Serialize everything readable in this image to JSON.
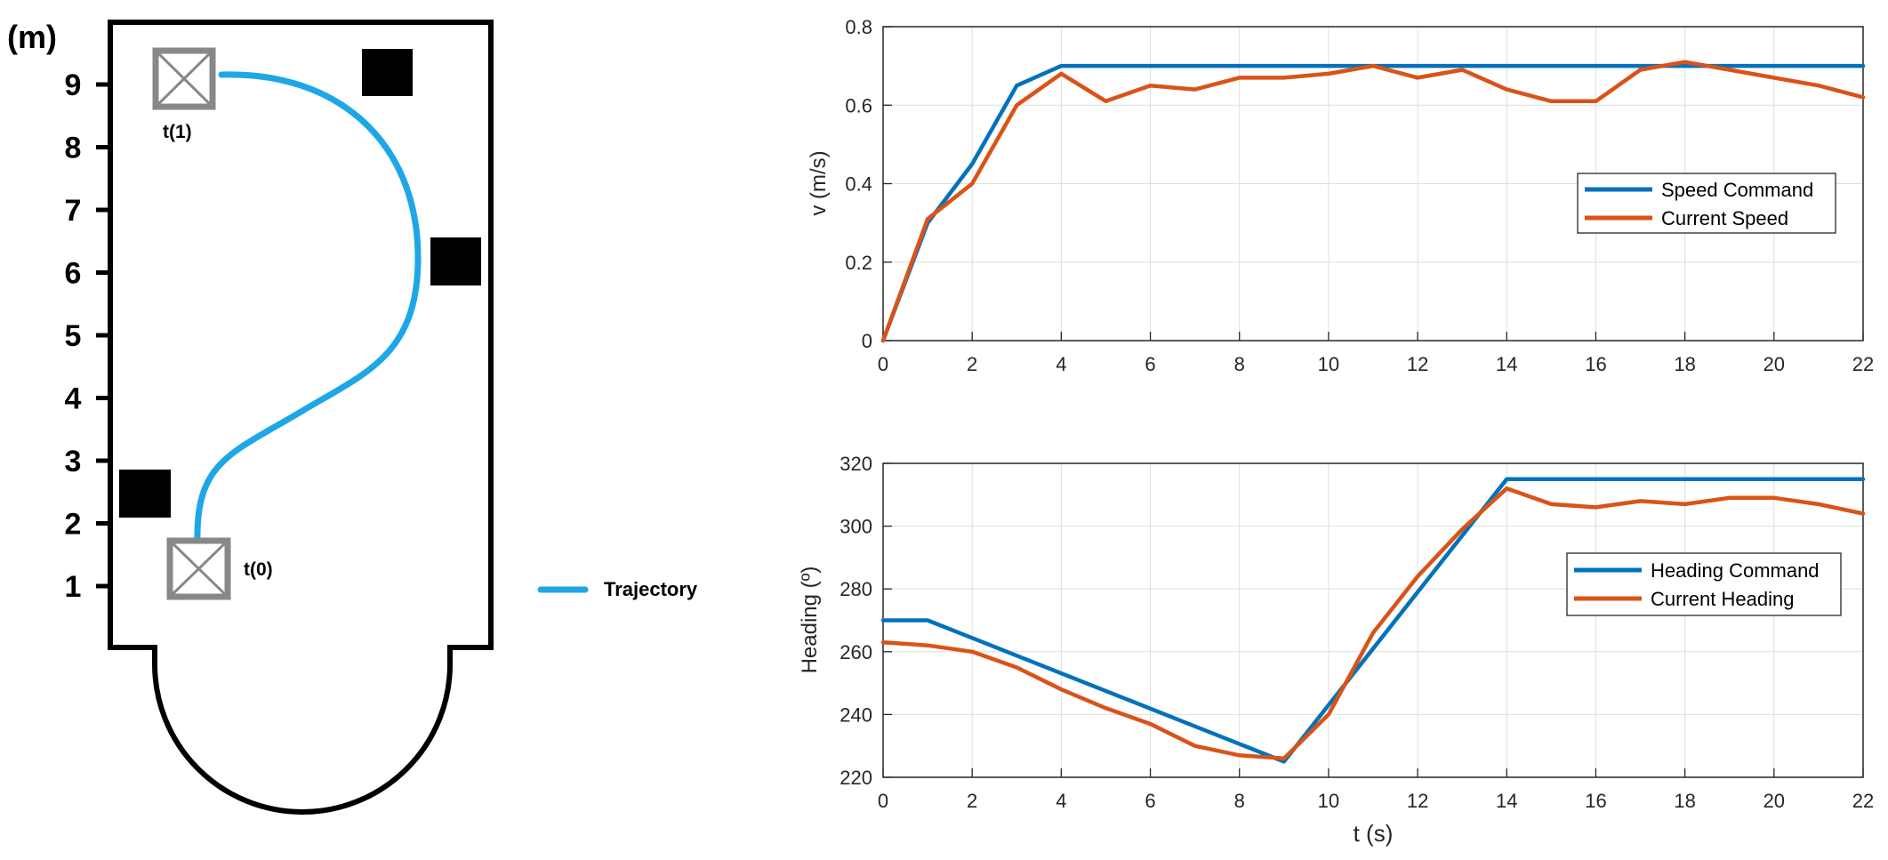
{
  "map": {
    "unit_label": "(m)",
    "y_ticks": [
      "9",
      "8",
      "7",
      "6",
      "5",
      "4",
      "3",
      "2",
      "1"
    ],
    "start_label": "t(0)",
    "end_label": "t(1)",
    "legend_label": "Trajectory",
    "trajectory_color": "#1ea7e6",
    "wall_color": "#000000",
    "marker_color": "#888888"
  },
  "chart_data": [
    {
      "type": "line",
      "title": "",
      "xlabel": "",
      "ylabel": "v (m/s)",
      "xlim": [
        0,
        22
      ],
      "ylim": [
        0,
        0.8
      ],
      "x_ticks": [
        "0",
        "2",
        "4",
        "6",
        "8",
        "10",
        "12",
        "14",
        "16",
        "18",
        "20",
        "22"
      ],
      "y_ticks": [
        "0",
        "0.2",
        "0.4",
        "0.6",
        "0.8"
      ],
      "grid": true,
      "legend_position": "center-right",
      "series": [
        {
          "name": "Speed Command",
          "color": "#0072bd",
          "x": [
            0,
            1,
            2,
            3,
            4,
            5,
            6,
            7,
            8,
            9,
            10,
            11,
            12,
            13,
            14,
            15,
            16,
            17,
            18,
            19,
            20,
            21,
            22
          ],
          "values": [
            0,
            0.3,
            0.45,
            0.65,
            0.7,
            0.7,
            0.7,
            0.7,
            0.7,
            0.7,
            0.7,
            0.7,
            0.7,
            0.7,
            0.7,
            0.7,
            0.7,
            0.7,
            0.7,
            0.7,
            0.7,
            0.7,
            0.7
          ]
        },
        {
          "name": "Current Speed",
          "color": "#d95319",
          "x": [
            0,
            1,
            2,
            3,
            4,
            5,
            6,
            7,
            8,
            9,
            10,
            11,
            12,
            13,
            14,
            15,
            16,
            17,
            18,
            19,
            20,
            21,
            22
          ],
          "values": [
            0,
            0.31,
            0.4,
            0.6,
            0.68,
            0.61,
            0.65,
            0.64,
            0.67,
            0.67,
            0.68,
            0.7,
            0.67,
            0.69,
            0.64,
            0.61,
            0.61,
            0.69,
            0.71,
            0.69,
            0.67,
            0.65,
            0.62
          ]
        }
      ]
    },
    {
      "type": "line",
      "title": "",
      "xlabel": "t (s)",
      "ylabel": "Heading (º)",
      "xlim": [
        0,
        22
      ],
      "ylim": [
        220,
        320
      ],
      "x_ticks": [
        "0",
        "2",
        "4",
        "6",
        "8",
        "10",
        "12",
        "14",
        "16",
        "18",
        "20",
        "22"
      ],
      "y_ticks": [
        "220",
        "240",
        "260",
        "280",
        "300",
        "320"
      ],
      "grid": true,
      "legend_position": "center-right",
      "series": [
        {
          "name": "Heading Command",
          "color": "#0072bd",
          "x": [
            0,
            1,
            9,
            14,
            15,
            16,
            17,
            18,
            19,
            20,
            21,
            22
          ],
          "values": [
            270,
            270,
            225,
            315,
            315,
            315,
            315,
            315,
            315,
            315,
            315,
            315
          ]
        },
        {
          "name": "Current Heading",
          "color": "#d95319",
          "x": [
            0,
            1,
            2,
            3,
            4,
            5,
            6,
            7,
            8,
            9,
            10,
            11,
            12,
            13,
            14,
            15,
            16,
            17,
            18,
            19,
            20,
            21,
            22
          ],
          "values": [
            263,
            262,
            260,
            255,
            248,
            242,
            237,
            230,
            227,
            226,
            240,
            266,
            284,
            299,
            312,
            307,
            306,
            308,
            307,
            309,
            309,
            307,
            304
          ]
        }
      ]
    }
  ]
}
